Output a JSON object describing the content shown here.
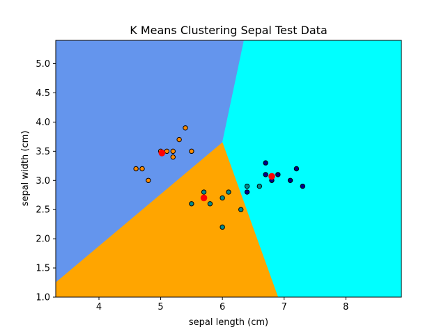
{
  "chart_data": {
    "type": "scatter",
    "title": "K Means Clustering Sepal Test Data",
    "xlabel": "sepal length (cm)",
    "ylabel": "sepal width (cm)",
    "xlim": [
      3.3,
      8.9
    ],
    "ylim": [
      1.0,
      5.4
    ],
    "xticks": [
      4,
      5,
      6,
      7,
      8
    ],
    "yticks": [
      1.0,
      1.5,
      2.0,
      2.5,
      3.0,
      3.5,
      4.0,
      4.5,
      5.0
    ],
    "xtick_labels": [
      "4",
      "5",
      "6",
      "7",
      "8"
    ],
    "ytick_labels": [
      "1.0",
      "1.5",
      "2.0",
      "2.5",
      "3.0",
      "3.5",
      "4.0",
      "4.5",
      "5.0"
    ],
    "grid": false,
    "regions": [
      {
        "color": "#6495ED",
        "polygon": [
          [
            3.3,
            1.25
          ],
          [
            3.3,
            5.4
          ],
          [
            6.35,
            5.4
          ],
          [
            6.0,
            3.65
          ]
        ]
      },
      {
        "color": "#00FFFF",
        "polygon": [
          [
            6.35,
            5.4
          ],
          [
            8.9,
            5.4
          ],
          [
            8.9,
            1.0
          ],
          [
            6.9,
            1.0
          ],
          [
            6.0,
            3.65
          ]
        ]
      },
      {
        "color": "#FFA500",
        "polygon": [
          [
            3.3,
            1.0
          ],
          [
            3.3,
            1.25
          ],
          [
            6.0,
            3.65
          ],
          [
            6.9,
            1.0
          ]
        ]
      }
    ],
    "series": [
      {
        "color": "#FF8C00",
        "points": [
          [
            4.6,
            3.2
          ],
          [
            4.7,
            3.2
          ],
          [
            4.8,
            3.0
          ],
          [
            5.0,
            3.5
          ],
          [
            5.1,
            3.5
          ],
          [
            5.2,
            3.5
          ],
          [
            5.2,
            3.4
          ],
          [
            5.3,
            3.7
          ],
          [
            5.4,
            3.9
          ],
          [
            5.5,
            3.5
          ]
        ]
      },
      {
        "color": "#008B8B",
        "points": [
          [
            5.5,
            2.6
          ],
          [
            5.7,
            2.8
          ],
          [
            5.8,
            2.6
          ],
          [
            6.0,
            2.2
          ],
          [
            6.0,
            2.7
          ],
          [
            6.1,
            2.8
          ],
          [
            6.3,
            2.5
          ],
          [
            6.4,
            2.9
          ],
          [
            6.6,
            2.9
          ]
        ]
      },
      {
        "color": "#00008B",
        "points": [
          [
            6.4,
            2.8
          ],
          [
            6.7,
            3.3
          ],
          [
            6.7,
            3.1
          ],
          [
            6.8,
            3.0
          ],
          [
            6.9,
            3.1
          ],
          [
            7.1,
            3.0
          ],
          [
            7.2,
            3.2
          ],
          [
            7.3,
            2.9
          ]
        ]
      }
    ],
    "centroids": {
      "color": "#FF0000",
      "points": [
        [
          5.02,
          3.47
        ],
        [
          5.7,
          2.7
        ],
        [
          6.8,
          3.07
        ]
      ]
    }
  }
}
